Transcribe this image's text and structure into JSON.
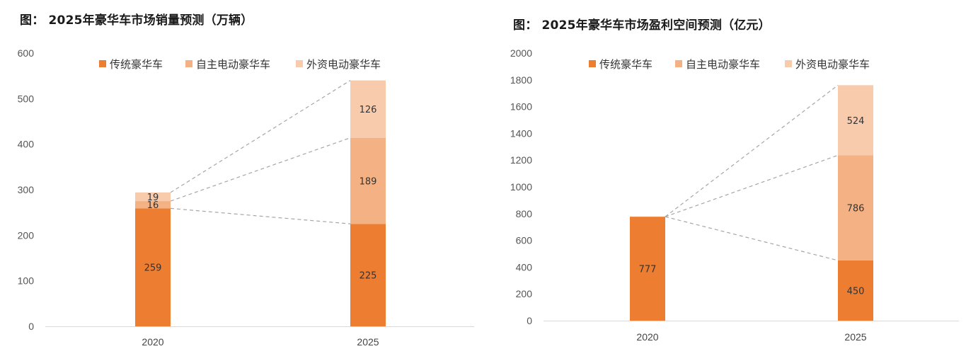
{
  "chart_data": [
    {
      "type": "bar",
      "stacked": true,
      "title": "图： 2025年豪华车市场销量预测（万辆）",
      "categories": [
        "2020",
        "2025"
      ],
      "series": [
        {
          "name": "传统豪华车",
          "values": [
            259,
            225
          ],
          "color": "#ED7D31"
        },
        {
          "name": "自主电动豪华车",
          "values": [
            16,
            189
          ],
          "color": "#F4B183"
        },
        {
          "name": "外资电动豪华车",
          "values": [
            19,
            126
          ],
          "color": "#F8CBAD"
        }
      ],
      "ylim": [
        0,
        600
      ],
      "yticks": [
        "0",
        "100",
        "200",
        "300",
        "400",
        "500",
        "600"
      ],
      "xlabel": "",
      "ylabel": "",
      "grid": false,
      "legend": "top",
      "connector_lines": true
    },
    {
      "type": "bar",
      "stacked": true,
      "title": "图： 2025年豪华车市场盈利空间预测（亿元）",
      "categories": [
        "2020",
        "2025"
      ],
      "series": [
        {
          "name": "传统豪华车",
          "values": [
            777,
            450
          ],
          "color": "#ED7D31"
        },
        {
          "name": "自主电动豪华车",
          "values": [
            null,
            786
          ],
          "color": "#F4B183"
        },
        {
          "name": "外资电动豪华车",
          "values": [
            null,
            524
          ],
          "color": "#F8CBAD"
        }
      ],
      "ylim": [
        0,
        2000
      ],
      "yticks": [
        "0",
        "200",
        "400",
        "600",
        "800",
        "1000",
        "1200",
        "1400",
        "1600",
        "1800",
        "2000"
      ],
      "xlabel": "",
      "ylabel": "",
      "grid": false,
      "legend": "top",
      "connector_lines": true
    }
  ]
}
